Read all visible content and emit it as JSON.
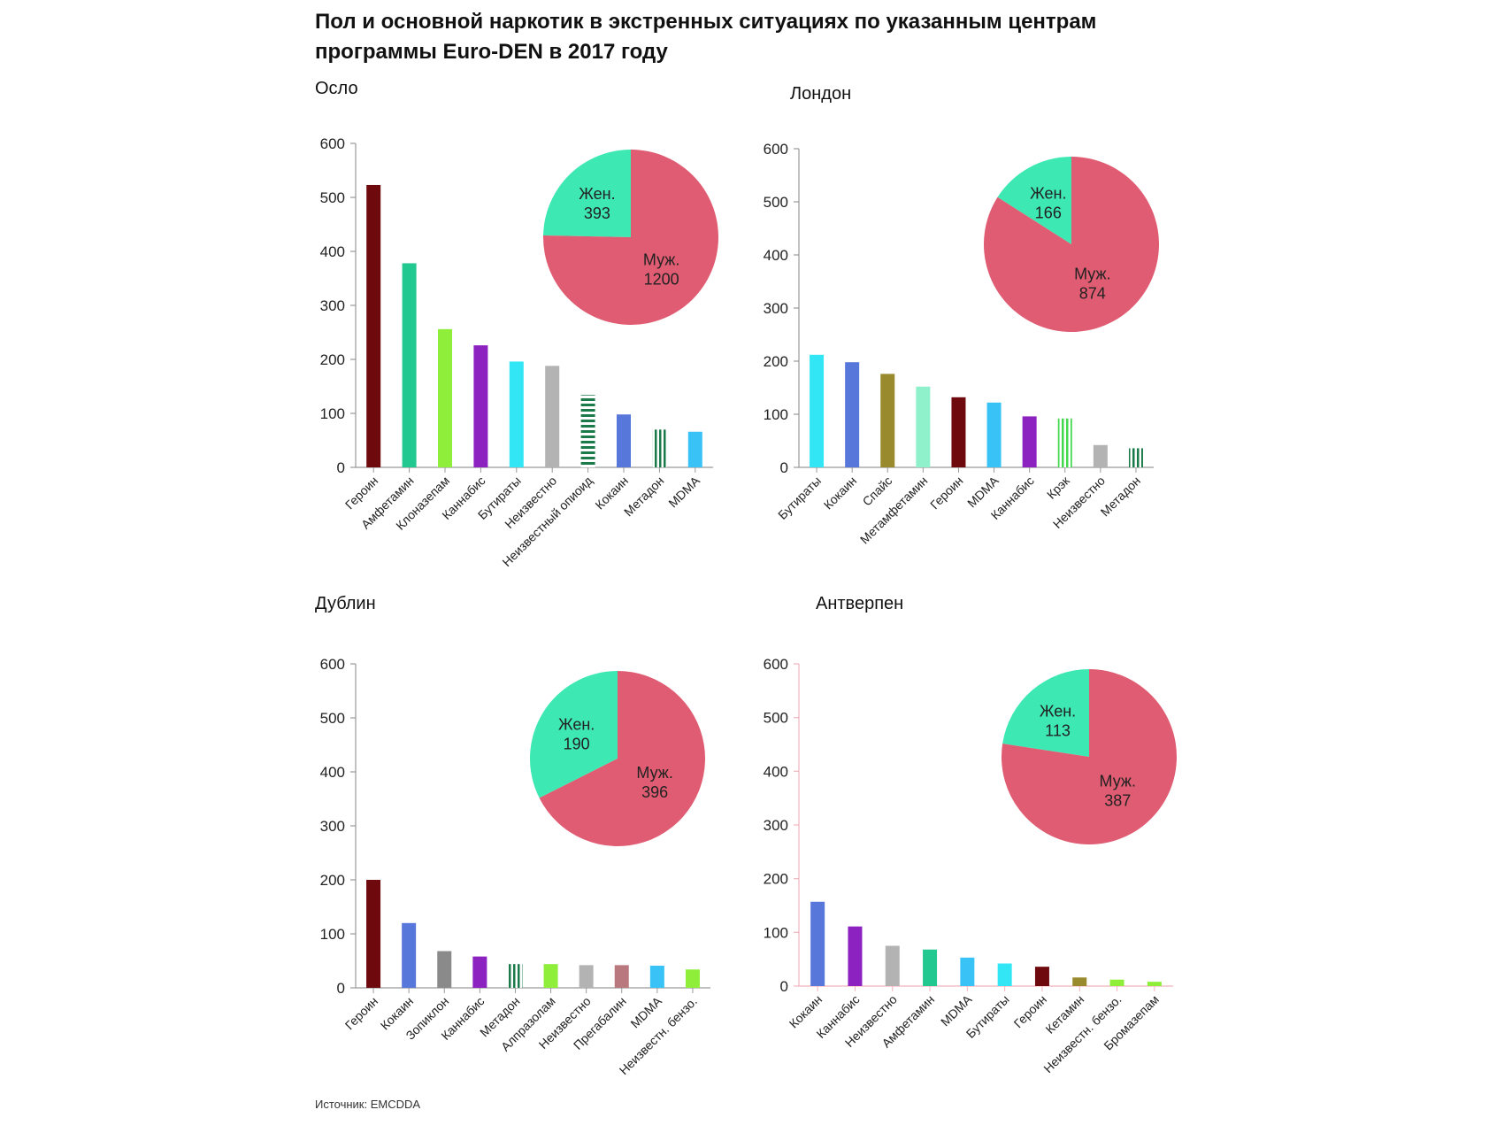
{
  "title_line1": "Пол и основной наркотик в экстренных ситуациях по указанным центрам",
  "title_line2": "программы Euro-DEN в 2017 году",
  "source": "Источник: EMCDDA",
  "colors": {
    "female": "#3de8b2",
    "male": "#e05c72",
    "axis": "#999999",
    "red_axis": "#f2b3bd"
  },
  "chart_data": [
    {
      "type": "bar",
      "title": "Осло",
      "categories": [
        "Героин",
        "Амфетамин",
        "Клоназепам",
        "Каннабис",
        "Бутираты",
        "Неизвестно",
        "Неизвестный опиоид",
        "Кокаин",
        "Метадон",
        "MDMA"
      ],
      "values": [
        523,
        378,
        256,
        226,
        196,
        188,
        134,
        98,
        70,
        66
      ],
      "colors": [
        "#6e0a0e",
        "#21c990",
        "#8fee3a",
        "#8c22c0",
        "#33e6f5",
        "#b3b3b3",
        "#1b7a4a",
        "#5877db",
        "#1b7a4a",
        "#39c2f5"
      ],
      "patterns": [
        "solid",
        "solid",
        "solid",
        "solid",
        "solid",
        "solid",
        "hstripe",
        "solid",
        "vstripe",
        "solid"
      ],
      "ylim": [
        0,
        600
      ],
      "yticks": [
        0,
        100,
        200,
        300,
        400,
        500,
        600
      ],
      "pie": [
        {
          "label": "Жен.",
          "value": 393
        },
        {
          "label": "Муж.",
          "value": 1200
        }
      ]
    },
    {
      "type": "bar",
      "title": "Лондон",
      "categories": [
        "Бутираты",
        "Кокаин",
        "Спайс",
        "Метамфетамин",
        "Героин",
        "MDMA",
        "Каннабис",
        "Крэк",
        "Неизвестно",
        "Метадон"
      ],
      "values": [
        212,
        198,
        176,
        152,
        132,
        122,
        96,
        92,
        42,
        36
      ],
      "colors": [
        "#33e6f5",
        "#5877db",
        "#9a8a2e",
        "#8ff0cc",
        "#6e0a0e",
        "#39c2f5",
        "#8c22c0",
        "#43d94e",
        "#b3b3b3",
        "#1b7a4a"
      ],
      "patterns": [
        "solid",
        "solid",
        "solid",
        "solid",
        "solid",
        "solid",
        "solid",
        "vstripe",
        "solid",
        "vstripe"
      ],
      "ylim": [
        0,
        600
      ],
      "yticks": [
        0,
        100,
        200,
        300,
        400,
        500,
        600
      ],
      "pie": [
        {
          "label": "Жен.",
          "value": 166
        },
        {
          "label": "Муж.",
          "value": 874
        }
      ]
    },
    {
      "type": "bar",
      "title": "Дублин",
      "categories": [
        "Героин",
        "Кокаин",
        "Зопиклон",
        "Каннабис",
        "Метадон",
        "Алпразолам",
        "Неизвестно",
        "Прегабалин",
        "MDMA",
        "Неизвестн. бензо."
      ],
      "values": [
        200,
        120,
        68,
        58,
        44,
        44,
        42,
        42,
        41,
        34
      ],
      "colors": [
        "#6e0a0e",
        "#5877db",
        "#8a8a8a",
        "#8c22c0",
        "#1b7a4a",
        "#8fee3a",
        "#b3b3b3",
        "#b9787e",
        "#39c2f5",
        "#8fee3a"
      ],
      "patterns": [
        "solid",
        "solid",
        "solid",
        "solid",
        "vstripe",
        "solid",
        "solid",
        "solid",
        "solid",
        "solid"
      ],
      "ylim": [
        0,
        600
      ],
      "yticks": [
        0,
        100,
        200,
        300,
        400,
        500,
        600
      ],
      "pie": [
        {
          "label": "Жен.",
          "value": 190
        },
        {
          "label": "Муж.",
          "value": 396
        }
      ]
    },
    {
      "type": "bar",
      "title": "Антверпен",
      "categories": [
        "Кокаин",
        "Каннабис",
        "Неизвестно",
        "Амфетамин",
        "MDMA",
        "Бутираты",
        "Героин",
        "Кетамин",
        "Неизвестн. бензо.",
        "Бромазепам"
      ],
      "values": [
        157,
        111,
        75,
        68,
        53,
        42,
        36,
        16,
        12,
        8
      ],
      "colors": [
        "#5877db",
        "#8c22c0",
        "#b3b3b3",
        "#21c990",
        "#39c2f5",
        "#33e6f5",
        "#6e0a0e",
        "#9a8a2e",
        "#8fee3a",
        "#8fee3a"
      ],
      "patterns": [
        "solid",
        "solid",
        "solid",
        "solid",
        "solid",
        "solid",
        "solid",
        "solid",
        "solid",
        "solid"
      ],
      "ylim": [
        0,
        600
      ],
      "yticks": [
        0,
        100,
        200,
        300,
        400,
        500,
        600
      ],
      "pie": [
        {
          "label": "Жен.",
          "value": 113
        },
        {
          "label": "Муж.",
          "value": 387
        }
      ]
    }
  ]
}
